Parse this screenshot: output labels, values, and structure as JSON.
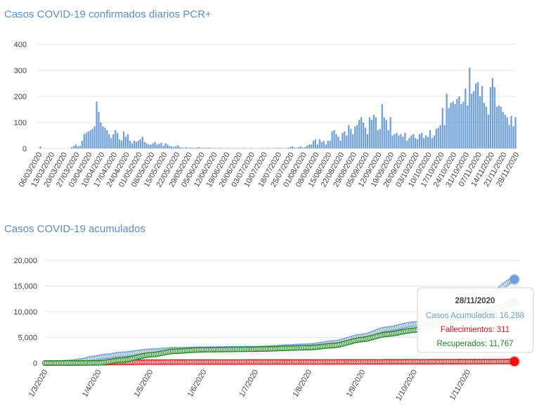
{
  "chart_data": [
    {
      "type": "bar",
      "title": "Casos COVID-19 confirmados diarios PCR+",
      "xlabel": "",
      "ylabel": "",
      "ylim": [
        0,
        400
      ],
      "yticks": [
        0,
        100,
        200,
        300,
        400
      ],
      "start_date": "06/03/2020",
      "end_date": "28/11/2020",
      "xtick_labels": [
        "06/03/2020",
        "13/03/2020",
        "20/03/2020",
        "27/03/2020",
        "03/04/2020",
        "10/04/2020",
        "17/04/2020",
        "24/04/2020",
        "01/05/2020",
        "08/05/2020",
        "15/05/2020",
        "22/05/2020",
        "29/05/2020",
        "05/06/2020",
        "12/06/2020",
        "19/06/2020",
        "26/06/2020",
        "03/07/2020",
        "10/07/2020",
        "18/07/2020",
        "25/07/2020",
        "01/08/2020",
        "08/08/2020",
        "15/08/2020",
        "22/08/2020",
        "29/08/2020",
        "05/09/2020",
        "12/09/2020",
        "19/09/2020",
        "26/09/2020",
        "03/10/2020",
        "10/10/2020",
        "17/10/2020",
        "24/10/2020",
        "31/10/2020",
        "07/11/2020",
        "14/11/2020",
        "21/11/2020",
        "28/11/2020"
      ],
      "bar_color": "#6f9fd8",
      "values": [
        8,
        0,
        0,
        0,
        0,
        0,
        0,
        0,
        0,
        0,
        0,
        0,
        0,
        0,
        0,
        5,
        10,
        15,
        8,
        10,
        30,
        55,
        60,
        65,
        70,
        75,
        85,
        180,
        140,
        100,
        85,
        80,
        70,
        55,
        40,
        55,
        70,
        60,
        35,
        30,
        65,
        45,
        55,
        30,
        20,
        30,
        25,
        30,
        35,
        45,
        25,
        20,
        15,
        15,
        20,
        25,
        15,
        18,
        22,
        10,
        20,
        15,
        10,
        8,
        5,
        8,
        12,
        5,
        3,
        2,
        5,
        2,
        3,
        3,
        2,
        3,
        5,
        2,
        2,
        3,
        2,
        3,
        2,
        1,
        2,
        1,
        2,
        2,
        1,
        1,
        2,
        1,
        2,
        1,
        1,
        2,
        1,
        1,
        2,
        1,
        1,
        2,
        1,
        1,
        1,
        1,
        2,
        1,
        1,
        2,
        1,
        1,
        2,
        1,
        2,
        3,
        1,
        1,
        2,
        3,
        5,
        8,
        3,
        2,
        5,
        8,
        3,
        5,
        10,
        15,
        15,
        30,
        35,
        15,
        35,
        25,
        30,
        15,
        30,
        30,
        65,
        70,
        55,
        45,
        30,
        60,
        65,
        50,
        90,
        75,
        55,
        85,
        90,
        110,
        120,
        100,
        80,
        55,
        120,
        110,
        130,
        120,
        70,
        75,
        170,
        120,
        110,
        70,
        120,
        50,
        55,
        60,
        50,
        55,
        45,
        60,
        30,
        40,
        50,
        55,
        40,
        35,
        55,
        60,
        40,
        50,
        45,
        70,
        40,
        50,
        75,
        80,
        90,
        155,
        90,
        210,
        155,
        175,
        180,
        170,
        190,
        200,
        170,
        180,
        230,
        165,
        310,
        210,
        220,
        250,
        255,
        200,
        240,
        175,
        160,
        130,
        235,
        270,
        235,
        160,
        165,
        160,
        140,
        130,
        120,
        90,
        125,
        85,
        120
      ]
    },
    {
      "type": "line",
      "title": "Casos COVID-19 acumulados",
      "xlabel": "",
      "ylabel": "",
      "ylim": [
        0,
        20000
      ],
      "yticks": [
        "0",
        "5,000",
        "10,000",
        "15,000",
        "20,000"
      ],
      "xtick_labels": [
        "1/3/2020",
        "1/4/2020",
        "1/5/2020",
        "1/6/2020",
        "1/7/2020",
        "1/8/2020",
        "1/9/2020",
        "1/10/2020",
        "1/11/2020"
      ],
      "x_start": "1/3/2020",
      "x_end": "28/11/2020",
      "series": [
        {
          "name": "Casos Acumulados",
          "color": "#6f9fd8",
          "points": [
            [
              "1/3/2020",
              0
            ],
            [
              "8/3/2020",
              10
            ],
            [
              "15/3/2020",
              120
            ],
            [
              "22/3/2020",
              400
            ],
            [
              "29/3/2020",
              900
            ],
            [
              "5/4/2020",
              1300
            ],
            [
              "15/4/2020",
              1700
            ],
            [
              "1/5/2020",
              2300
            ],
            [
              "15/5/2020",
              2600
            ],
            [
              "1/6/2020",
              2700
            ],
            [
              "1/7/2020",
              2800
            ],
            [
              "1/8/2020",
              3300
            ],
            [
              "15/8/2020",
              3900
            ],
            [
              "1/9/2020",
              5200
            ],
            [
              "15/9/2020",
              6600
            ],
            [
              "1/10/2020",
              7600
            ],
            [
              "15/10/2020",
              8500
            ],
            [
              "1/11/2020",
              10200
            ],
            [
              "15/11/2020",
              13600
            ],
            [
              "28/11/2020",
              16288
            ]
          ]
        },
        {
          "name": "Fallecimientos",
          "color": "#ee1111",
          "points": [
            [
              "1/3/2020",
              0
            ],
            [
              "20/3/2020",
              10
            ],
            [
              "1/4/2020",
              60
            ],
            [
              "15/4/2020",
              130
            ],
            [
              "1/5/2020",
              180
            ],
            [
              "1/6/2020",
              200
            ],
            [
              "1/8/2020",
              210
            ],
            [
              "1/9/2020",
              230
            ],
            [
              "1/10/2020",
              250
            ],
            [
              "1/11/2020",
              275
            ],
            [
              "28/11/2020",
              311
            ]
          ]
        },
        {
          "name": "Recuperados",
          "color": "#1e8a1e",
          "points": [
            [
              "1/3/2020",
              0
            ],
            [
              "1/4/2020",
              30
            ],
            [
              "15/4/2020",
              600
            ],
            [
              "1/5/2020",
              1600
            ],
            [
              "15/5/2020",
              2300
            ],
            [
              "1/6/2020",
              2600
            ],
            [
              "1/7/2020",
              2700
            ],
            [
              "1/8/2020",
              3000
            ],
            [
              "15/8/2020",
              3400
            ],
            [
              "1/9/2020",
              4600
            ],
            [
              "15/9/2020",
              5600
            ],
            [
              "1/10/2020",
              6400
            ],
            [
              "15/10/2020",
              7600
            ],
            [
              "1/11/2020",
              9100
            ],
            [
              "15/11/2020",
              10500
            ],
            [
              "28/11/2020",
              11767
            ]
          ]
        }
      ],
      "tooltip": {
        "date": "28/11/2020",
        "lines": [
          {
            "text": "Casos Acumulados: 16,288",
            "color": "#6f9fd8"
          },
          {
            "text": "Fallecimientos: 311",
            "color": "#ee1111"
          },
          {
            "text": "Recuperados: 11,767",
            "color": "#1e8a1e"
          }
        ]
      }
    }
  ]
}
